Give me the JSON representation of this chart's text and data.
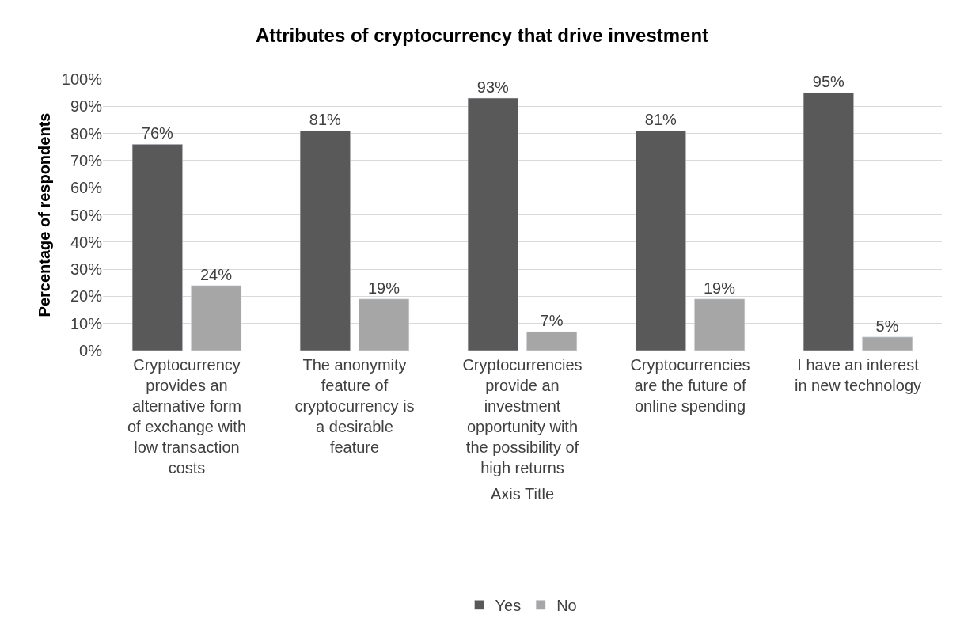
{
  "chart_data": {
    "type": "bar",
    "title": "Attributes of cryptocurrency that drive investment",
    "xlabel": "Axis Title",
    "ylabel": "Percentage of respondents",
    "categories": [
      "Cryptocurrency provides an alternative form of exchange with low transaction costs",
      "The anonymity feature of cryptocurrency is a desirable feature",
      "Cryptocurrencies provide an investment opportunity with the possibility of high returns",
      "Cryptocurrencies are the future of online spending",
      "I have an interest in new technology"
    ],
    "series": [
      {
        "name": "Yes",
        "color": "#595959",
        "values": [
          76,
          81,
          93,
          81,
          95
        ],
        "value_labels": [
          "76%",
          "81%",
          "93%",
          "81%",
          "95%"
        ]
      },
      {
        "name": "No",
        "color": "#a6a6a6",
        "values": [
          24,
          19,
          7,
          19,
          5
        ],
        "value_labels": [
          "24%",
          "19%",
          "7%",
          "19%",
          "5%"
        ]
      }
    ],
    "ylim": [
      0,
      100
    ],
    "yticks": [
      {
        "value": 0,
        "label": "0%"
      },
      {
        "value": 10,
        "label": "10%"
      },
      {
        "value": 20,
        "label": "20%"
      },
      {
        "value": 30,
        "label": "30%"
      },
      {
        "value": 40,
        "label": "40%"
      },
      {
        "value": 50,
        "label": "50%"
      },
      {
        "value": 60,
        "label": "60%"
      },
      {
        "value": 70,
        "label": "70%"
      },
      {
        "value": 80,
        "label": "80%"
      },
      {
        "value": 90,
        "label": "90%"
      },
      {
        "value": 100,
        "label": "100%"
      }
    ],
    "grid": "y",
    "legend": "bottom"
  }
}
